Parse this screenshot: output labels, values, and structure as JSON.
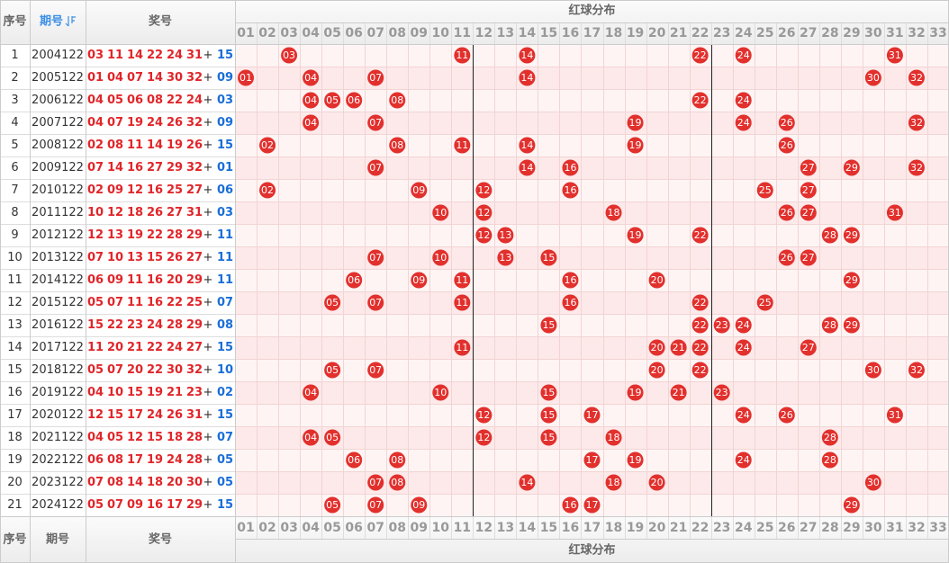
{
  "header": {
    "no": "序号",
    "issue": "期号",
    "numbers": "奖号",
    "red_dist": "红球分布"
  },
  "columns": [
    "01",
    "02",
    "03",
    "04",
    "05",
    "06",
    "07",
    "08",
    "09",
    "10",
    "11",
    "12",
    "13",
    "14",
    "15",
    "16",
    "17",
    "18",
    "19",
    "20",
    "21",
    "22",
    "23",
    "24",
    "25",
    "26",
    "27",
    "28",
    "29",
    "30",
    "31",
    "32",
    "33"
  ],
  "plus": "+",
  "rows": [
    {
      "no": "1",
      "issue": "2004122",
      "reds": [
        "03",
        "11",
        "14",
        "22",
        "24",
        "31"
      ],
      "blue": "15"
    },
    {
      "no": "2",
      "issue": "2005122",
      "reds": [
        "01",
        "04",
        "07",
        "14",
        "30",
        "32"
      ],
      "blue": "09"
    },
    {
      "no": "3",
      "issue": "2006122",
      "reds": [
        "04",
        "05",
        "06",
        "08",
        "22",
        "24"
      ],
      "blue": "03"
    },
    {
      "no": "4",
      "issue": "2007122",
      "reds": [
        "04",
        "07",
        "19",
        "24",
        "26",
        "32"
      ],
      "blue": "09"
    },
    {
      "no": "5",
      "issue": "2008122",
      "reds": [
        "02",
        "08",
        "11",
        "14",
        "19",
        "26"
      ],
      "blue": "15"
    },
    {
      "no": "6",
      "issue": "2009122",
      "reds": [
        "07",
        "14",
        "16",
        "27",
        "29",
        "32"
      ],
      "blue": "01"
    },
    {
      "no": "7",
      "issue": "2010122",
      "reds": [
        "02",
        "09",
        "12",
        "16",
        "25",
        "27"
      ],
      "blue": "06"
    },
    {
      "no": "8",
      "issue": "2011122",
      "reds": [
        "10",
        "12",
        "18",
        "26",
        "27",
        "31"
      ],
      "blue": "03"
    },
    {
      "no": "9",
      "issue": "2012122",
      "reds": [
        "12",
        "13",
        "19",
        "22",
        "28",
        "29"
      ],
      "blue": "11"
    },
    {
      "no": "10",
      "issue": "2013122",
      "reds": [
        "07",
        "10",
        "13",
        "15",
        "26",
        "27"
      ],
      "blue": "11"
    },
    {
      "no": "11",
      "issue": "2014122",
      "reds": [
        "06",
        "09",
        "11",
        "16",
        "20",
        "29"
      ],
      "blue": "11"
    },
    {
      "no": "12",
      "issue": "2015122",
      "reds": [
        "05",
        "07",
        "11",
        "16",
        "22",
        "25"
      ],
      "blue": "07"
    },
    {
      "no": "13",
      "issue": "2016122",
      "reds": [
        "15",
        "22",
        "23",
        "24",
        "28",
        "29"
      ],
      "blue": "08"
    },
    {
      "no": "14",
      "issue": "2017122",
      "reds": [
        "11",
        "20",
        "21",
        "22",
        "24",
        "27"
      ],
      "blue": "15"
    },
    {
      "no": "15",
      "issue": "2018122",
      "reds": [
        "05",
        "07",
        "20",
        "22",
        "30",
        "32"
      ],
      "blue": "10"
    },
    {
      "no": "16",
      "issue": "2019122",
      "reds": [
        "04",
        "10",
        "15",
        "19",
        "21",
        "23"
      ],
      "blue": "02"
    },
    {
      "no": "17",
      "issue": "2020122",
      "reds": [
        "12",
        "15",
        "17",
        "24",
        "26",
        "31"
      ],
      "blue": "15"
    },
    {
      "no": "18",
      "issue": "2021122",
      "reds": [
        "04",
        "05",
        "12",
        "15",
        "18",
        "28"
      ],
      "blue": "07"
    },
    {
      "no": "19",
      "issue": "2022122",
      "reds": [
        "06",
        "08",
        "17",
        "19",
        "24",
        "28"
      ],
      "blue": "05"
    },
    {
      "no": "20",
      "issue": "2023122",
      "reds": [
        "07",
        "08",
        "14",
        "18",
        "20",
        "30"
      ],
      "blue": "05"
    },
    {
      "no": "21",
      "issue": "2024122",
      "reds": [
        "05",
        "07",
        "09",
        "16",
        "17",
        "29"
      ],
      "blue": "15"
    }
  ]
}
